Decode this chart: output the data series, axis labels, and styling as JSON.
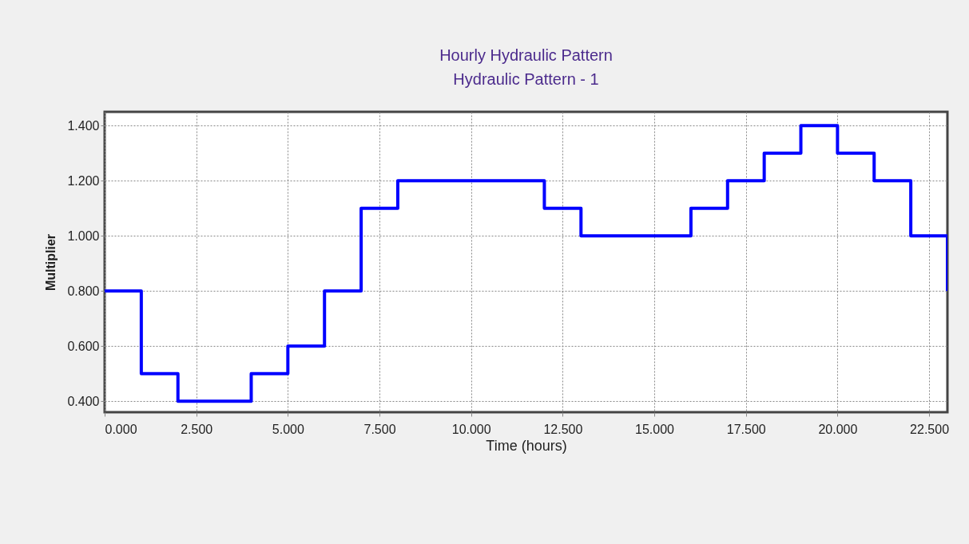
{
  "chart_data": {
    "type": "step",
    "title": "Hourly Hydraulic Pattern",
    "subtitle": "Hydraulic Pattern - 1",
    "xlabel": "Time (hours)",
    "ylabel": "Multiplier",
    "x": [
      0,
      1,
      2,
      3,
      4,
      5,
      6,
      7,
      8,
      9,
      10,
      11,
      12,
      13,
      14,
      15,
      16,
      17,
      18,
      19,
      20,
      21,
      22,
      23
    ],
    "series": [
      {
        "color": "#0000ff",
        "values": [
          0.8,
          0.5,
          0.4,
          0.4,
          0.5,
          0.6,
          0.8,
          1.1,
          1.2,
          1.2,
          1.2,
          1.2,
          1.1,
          1.0,
          1.0,
          1.0,
          1.1,
          1.2,
          1.3,
          1.4,
          1.3,
          1.2,
          1.0,
          0.8
        ]
      }
    ],
    "xlim": [
      0,
      23
    ],
    "ylim": [
      0.36,
      1.45
    ],
    "xticks": [
      {
        "value": 0,
        "label": "0.000"
      },
      {
        "value": 2.5,
        "label": "2.500"
      },
      {
        "value": 5,
        "label": "5.000"
      },
      {
        "value": 7.5,
        "label": "7.500"
      },
      {
        "value": 10,
        "label": "10.000"
      },
      {
        "value": 12.5,
        "label": "12.500"
      },
      {
        "value": 15,
        "label": "15.000"
      },
      {
        "value": 17.5,
        "label": "17.500"
      },
      {
        "value": 20,
        "label": "20.000"
      },
      {
        "value": 22.5,
        "label": "22.500"
      }
    ],
    "yticks": [
      {
        "value": 0.4,
        "label": "0.400"
      },
      {
        "value": 0.6,
        "label": "0.600"
      },
      {
        "value": 0.8,
        "label": "0.800"
      },
      {
        "value": 1.0,
        "label": "1.000"
      },
      {
        "value": 1.2,
        "label": "1.200"
      },
      {
        "value": 1.4,
        "label": "1.400"
      }
    ],
    "grid": true,
    "marker": "none",
    "line_style": "solid"
  }
}
